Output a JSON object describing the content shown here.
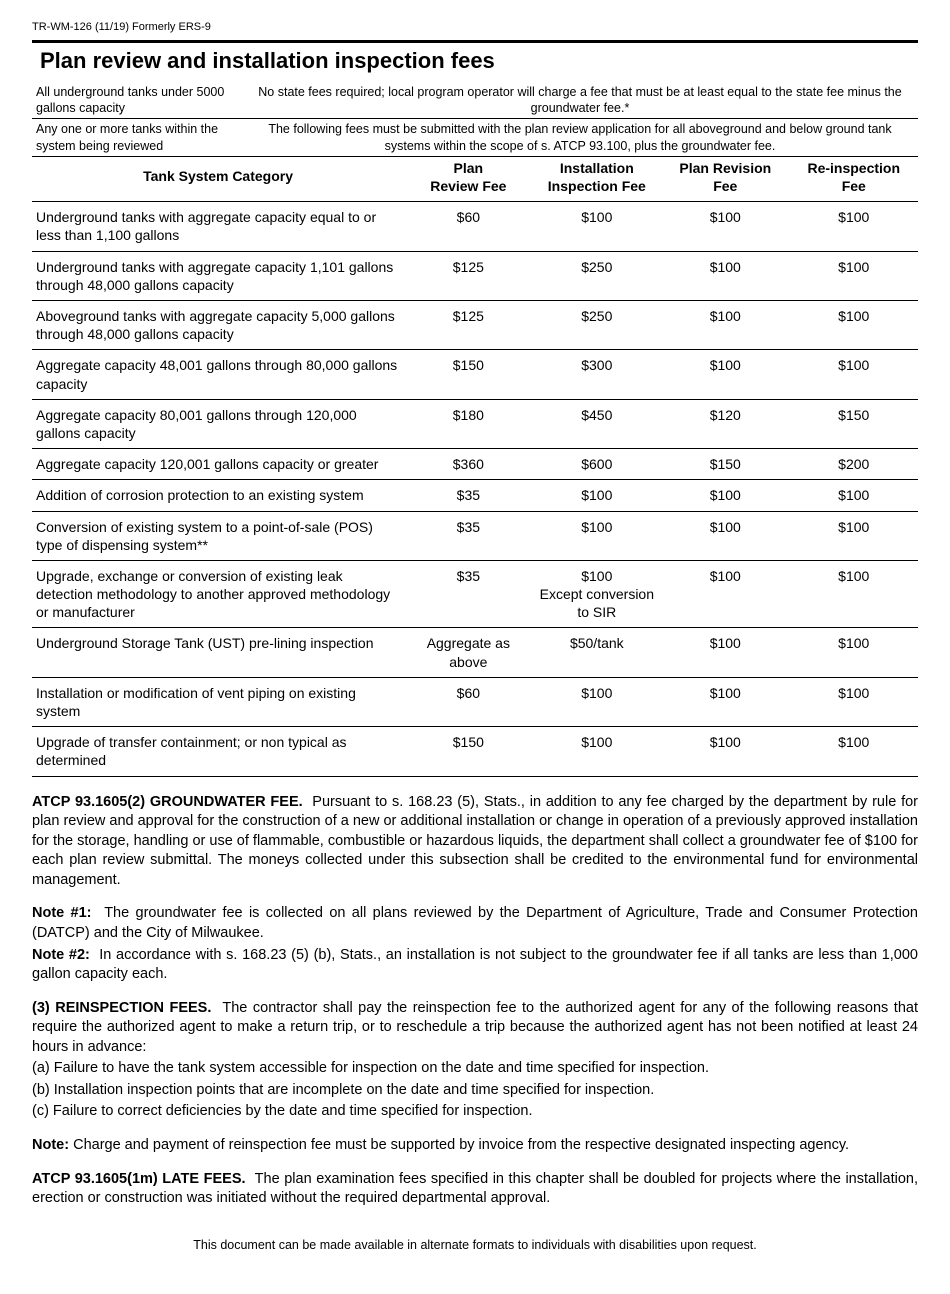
{
  "header": {
    "form_id": "TR-WM-126 (11/19)    Formerly ERS-9",
    "title": "Plan review and installation inspection fees"
  },
  "scope_rows": [
    {
      "left": "All underground tanks under 5000 gallons capacity",
      "right": "No state fees required; local program operator will charge a fee that must be at least equal to the state fee minus the groundwater fee.*"
    },
    {
      "left": "Any one or more tanks within the system being reviewed",
      "right": "The following fees must be submitted with the plan review application for all aboveground and below ground tank systems within the scope of s. ATCP 93.100, plus the groundwater fee."
    }
  ],
  "columns": {
    "category": "Tank System Category",
    "plan": [
      "Plan",
      "Review Fee"
    ],
    "install": [
      "Installation",
      "Inspection Fee"
    ],
    "revision": [
      "Plan Revision",
      "Fee"
    ],
    "reinspect": [
      "Re-inspection",
      "Fee"
    ]
  },
  "fee_rows": [
    {
      "cat": "Underground tanks with aggregate capacity equal to or less than 1,100 gallons",
      "plan": "$60",
      "install": "$100",
      "rev": "$100",
      "re": "$100"
    },
    {
      "cat": "Underground tanks with aggregate capacity 1,101 gallons through 48,000 gallons capacity",
      "plan": "$125",
      "install": "$250",
      "rev": "$100",
      "re": "$100"
    },
    {
      "cat": "Aboveground tanks with aggregate capacity 5,000 gallons through 48,000 gallons capacity",
      "plan": "$125",
      "install": "$250",
      "rev": "$100",
      "re": "$100"
    },
    {
      "cat": "Aggregate capacity 48,001 gallons through 80,000 gallons capacity",
      "plan": "$150",
      "install": "$300",
      "rev": "$100",
      "re": "$100"
    },
    {
      "cat": "Aggregate capacity 80,001 gallons through 120,000 gallons capacity",
      "plan": "$180",
      "install": "$450",
      "rev": "$120",
      "re": "$150"
    },
    {
      "cat": "Aggregate capacity 120,001 gallons capacity or greater",
      "plan": "$360",
      "install": "$600",
      "rev": "$150",
      "re": "$200"
    },
    {
      "cat": "Addition of corrosion protection to an existing system",
      "plan": "$35",
      "install": "$100",
      "rev": "$100",
      "re": "$100"
    },
    {
      "cat": "Conversion of existing system to a point-of-sale (POS) type of dispensing system**",
      "plan": "$35",
      "install": "$100",
      "rev": "$100",
      "re": "$100"
    },
    {
      "cat": "Upgrade, exchange or conversion of existing leak detection methodology to another approved methodology or manufacturer",
      "plan": "$35",
      "install": "$100\nExcept conversion to SIR",
      "rev": "$100",
      "re": "$100"
    },
    {
      "cat": "Underground Storage Tank (UST) pre-lining inspection",
      "plan": "Aggregate as above",
      "install": "$50/tank",
      "rev": "$100",
      "re": "$100"
    },
    {
      "cat": "Installation or modification of vent piping on existing system",
      "plan": "$60",
      "install": "$100",
      "rev": "$100",
      "re": "$100"
    },
    {
      "cat": "Upgrade of transfer containment; or non typical as determined",
      "plan": "$150",
      "install": "$100",
      "rev": "$100",
      "re": "$100"
    }
  ],
  "body": {
    "gw_head": "ATCP 93.1605(2) GROUNDWATER FEE.",
    "gw_text": "Pursuant to s. 168.23 (5), Stats., in addition to any fee charged by the department by rule for plan review and approval for the construction of a new or additional installation or change in operation of a previously approved installation for the storage, handling or use of flammable, combustible or hazardous liquids, the department shall collect a groundwater fee of $100 for each plan review submittal.  The moneys collected under this subsection shall be credited to the environmental fund for environmental management.",
    "note1_label": "Note #1:",
    "note1_text": "The groundwater fee is collected on all plans reviewed by the Department of Agriculture, Trade and Consumer Protection (DATCP) and the City of Milwaukee.",
    "note2_label": "Note #2:",
    "note2_text": "In accordance with s. 168.23 (5) (b), Stats., an installation is not subject to the groundwater fee if all tanks are less than 1,000 gallon capacity each.",
    "re_head": "(3) REINSPECTION FEES.",
    "re_text": "The contractor shall pay the reinspection fee to the authorized agent for any of the following reasons that require the authorized agent to make a return trip, or to reschedule a trip because the authorized agent has not been notified at least 24 hours in advance:",
    "re_a": "(a) Failure to have the tank system accessible for inspection on the date and time specified for inspection.",
    "re_b": "(b) Installation inspection points that are incomplete on the date and time specified for inspection.",
    "re_c": "(c) Failure to correct deficiencies by the date and time specified for inspection.",
    "re_note_label": "Note:",
    "re_note_text": "Charge and payment of reinspection fee must be supported by invoice from the respective designated inspecting agency.",
    "late_head": "ATCP 93.1605(1m) LATE FEES.",
    "late_text": "The plan examination fees specified in this chapter shall be doubled for projects where the installation, erection or construction was initiated without the required departmental approval.",
    "footer": "This document can be made available in alternate formats to individuals with disabilities upon request."
  }
}
